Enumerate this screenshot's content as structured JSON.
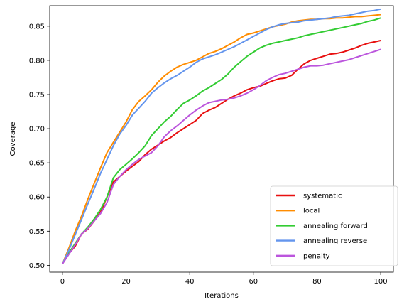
{
  "chart_data": {
    "type": "line",
    "title": "",
    "xlabel": "Iterations",
    "ylabel": "Coverage",
    "xlim": [
      -4,
      104
    ],
    "ylim": [
      0.49,
      0.88
    ],
    "xticks": [
      0,
      20,
      40,
      60,
      80,
      100
    ],
    "xtick_labels": [
      "0",
      "20",
      "40",
      "60",
      "80",
      "100"
    ],
    "yticks": [
      0.5,
      0.55,
      0.6,
      0.65,
      0.7,
      0.75,
      0.8,
      0.85
    ],
    "ytick_labels": [
      "0.50",
      "0.55",
      "0.60",
      "0.65",
      "0.70",
      "0.75",
      "0.80",
      "0.85"
    ],
    "grid": false,
    "legend_position": "lower right",
    "series": [
      {
        "name": "systematic",
        "color": "#e81010",
        "points": [
          [
            0,
            0.502
          ],
          [
            2,
            0.517
          ],
          [
            4,
            0.528
          ],
          [
            6,
            0.546
          ],
          [
            8,
            0.553
          ],
          [
            10,
            0.565
          ],
          [
            12,
            0.578
          ],
          [
            14,
            0.6
          ],
          [
            16,
            0.622
          ],
          [
            18,
            0.63
          ],
          [
            20,
            0.638
          ],
          [
            22,
            0.645
          ],
          [
            24,
            0.652
          ],
          [
            26,
            0.662
          ],
          [
            28,
            0.67
          ],
          [
            30,
            0.676
          ],
          [
            32,
            0.682
          ],
          [
            34,
            0.687
          ],
          [
            36,
            0.694
          ],
          [
            38,
            0.7
          ],
          [
            40,
            0.706
          ],
          [
            42,
            0.712
          ],
          [
            44,
            0.722
          ],
          [
            46,
            0.727
          ],
          [
            48,
            0.731
          ],
          [
            50,
            0.737
          ],
          [
            52,
            0.743
          ],
          [
            54,
            0.748
          ],
          [
            56,
            0.752
          ],
          [
            58,
            0.757
          ],
          [
            60,
            0.76
          ],
          [
            62,
            0.762
          ],
          [
            64,
            0.766
          ],
          [
            66,
            0.77
          ],
          [
            68,
            0.773
          ],
          [
            70,
            0.774
          ],
          [
            72,
            0.778
          ],
          [
            74,
            0.787
          ],
          [
            76,
            0.795
          ],
          [
            78,
            0.8
          ],
          [
            80,
            0.803
          ],
          [
            82,
            0.806
          ],
          [
            84,
            0.809
          ],
          [
            86,
            0.81
          ],
          [
            88,
            0.812
          ],
          [
            90,
            0.815
          ],
          [
            92,
            0.818
          ],
          [
            94,
            0.822
          ],
          [
            96,
            0.825
          ],
          [
            98,
            0.827
          ],
          [
            100,
            0.829
          ]
        ]
      },
      {
        "name": "local",
        "color": "#ff8c00",
        "points": [
          [
            0,
            0.502
          ],
          [
            2,
            0.525
          ],
          [
            4,
            0.55
          ],
          [
            6,
            0.572
          ],
          [
            8,
            0.597
          ],
          [
            10,
            0.62
          ],
          [
            12,
            0.643
          ],
          [
            14,
            0.665
          ],
          [
            16,
            0.68
          ],
          [
            18,
            0.695
          ],
          [
            20,
            0.71
          ],
          [
            22,
            0.728
          ],
          [
            24,
            0.74
          ],
          [
            26,
            0.748
          ],
          [
            28,
            0.757
          ],
          [
            30,
            0.768
          ],
          [
            32,
            0.777
          ],
          [
            34,
            0.784
          ],
          [
            36,
            0.79
          ],
          [
            38,
            0.794
          ],
          [
            40,
            0.797
          ],
          [
            42,
            0.8
          ],
          [
            44,
            0.805
          ],
          [
            46,
            0.81
          ],
          [
            48,
            0.813
          ],
          [
            50,
            0.817
          ],
          [
            52,
            0.822
          ],
          [
            54,
            0.827
          ],
          [
            56,
            0.833
          ],
          [
            58,
            0.838
          ],
          [
            60,
            0.84
          ],
          [
            62,
            0.843
          ],
          [
            64,
            0.846
          ],
          [
            66,
            0.849
          ],
          [
            68,
            0.851
          ],
          [
            70,
            0.853
          ],
          [
            72,
            0.856
          ],
          [
            74,
            0.858
          ],
          [
            76,
            0.859
          ],
          [
            78,
            0.86
          ],
          [
            80,
            0.86
          ],
          [
            82,
            0.861
          ],
          [
            84,
            0.861
          ],
          [
            86,
            0.862
          ],
          [
            88,
            0.862
          ],
          [
            90,
            0.863
          ],
          [
            92,
            0.864
          ],
          [
            94,
            0.864
          ],
          [
            96,
            0.865
          ],
          [
            98,
            0.866
          ],
          [
            100,
            0.867
          ]
        ]
      },
      {
        "name": "annealing forward",
        "color": "#33cc33",
        "points": [
          [
            0,
            0.502
          ],
          [
            2,
            0.518
          ],
          [
            4,
            0.532
          ],
          [
            6,
            0.546
          ],
          [
            8,
            0.556
          ],
          [
            10,
            0.568
          ],
          [
            12,
            0.582
          ],
          [
            14,
            0.6
          ],
          [
            16,
            0.628
          ],
          [
            18,
            0.64
          ],
          [
            20,
            0.648
          ],
          [
            22,
            0.656
          ],
          [
            24,
            0.665
          ],
          [
            26,
            0.675
          ],
          [
            28,
            0.69
          ],
          [
            30,
            0.7
          ],
          [
            32,
            0.71
          ],
          [
            34,
            0.718
          ],
          [
            36,
            0.728
          ],
          [
            38,
            0.737
          ],
          [
            40,
            0.742
          ],
          [
            42,
            0.748
          ],
          [
            44,
            0.755
          ],
          [
            46,
            0.76
          ],
          [
            48,
            0.766
          ],
          [
            50,
            0.772
          ],
          [
            52,
            0.78
          ],
          [
            54,
            0.79
          ],
          [
            56,
            0.798
          ],
          [
            58,
            0.806
          ],
          [
            60,
            0.812
          ],
          [
            62,
            0.818
          ],
          [
            64,
            0.822
          ],
          [
            66,
            0.825
          ],
          [
            68,
            0.827
          ],
          [
            70,
            0.829
          ],
          [
            72,
            0.831
          ],
          [
            74,
            0.833
          ],
          [
            76,
            0.836
          ],
          [
            78,
            0.838
          ],
          [
            80,
            0.84
          ],
          [
            82,
            0.842
          ],
          [
            84,
            0.844
          ],
          [
            86,
            0.846
          ],
          [
            88,
            0.848
          ],
          [
            90,
            0.85
          ],
          [
            92,
            0.852
          ],
          [
            94,
            0.854
          ],
          [
            96,
            0.857
          ],
          [
            98,
            0.859
          ],
          [
            100,
            0.862
          ]
        ]
      },
      {
        "name": "annealing reverse",
        "color": "#6495ed",
        "points": [
          [
            0,
            0.502
          ],
          [
            2,
            0.522
          ],
          [
            4,
            0.545
          ],
          [
            6,
            0.567
          ],
          [
            8,
            0.59
          ],
          [
            10,
            0.612
          ],
          [
            12,
            0.635
          ],
          [
            14,
            0.655
          ],
          [
            16,
            0.675
          ],
          [
            18,
            0.692
          ],
          [
            20,
            0.705
          ],
          [
            22,
            0.72
          ],
          [
            24,
            0.73
          ],
          [
            26,
            0.74
          ],
          [
            28,
            0.752
          ],
          [
            30,
            0.76
          ],
          [
            32,
            0.767
          ],
          [
            34,
            0.773
          ],
          [
            36,
            0.778
          ],
          [
            38,
            0.784
          ],
          [
            40,
            0.79
          ],
          [
            42,
            0.797
          ],
          [
            44,
            0.802
          ],
          [
            46,
            0.805
          ],
          [
            48,
            0.808
          ],
          [
            50,
            0.812
          ],
          [
            52,
            0.816
          ],
          [
            54,
            0.82
          ],
          [
            56,
            0.825
          ],
          [
            58,
            0.83
          ],
          [
            60,
            0.835
          ],
          [
            62,
            0.84
          ],
          [
            64,
            0.845
          ],
          [
            66,
            0.849
          ],
          [
            68,
            0.852
          ],
          [
            70,
            0.854
          ],
          [
            72,
            0.855
          ],
          [
            74,
            0.856
          ],
          [
            76,
            0.858
          ],
          [
            78,
            0.859
          ],
          [
            80,
            0.86
          ],
          [
            82,
            0.861
          ],
          [
            84,
            0.862
          ],
          [
            86,
            0.864
          ],
          [
            88,
            0.865
          ],
          [
            90,
            0.866
          ],
          [
            92,
            0.868
          ],
          [
            94,
            0.87
          ],
          [
            96,
            0.872
          ],
          [
            98,
            0.873
          ],
          [
            100,
            0.875
          ]
        ]
      },
      {
        "name": "penalty",
        "color": "#bb55dd",
        "points": [
          [
            0,
            0.502
          ],
          [
            2,
            0.516
          ],
          [
            4,
            0.53
          ],
          [
            6,
            0.546
          ],
          [
            8,
            0.554
          ],
          [
            10,
            0.565
          ],
          [
            12,
            0.576
          ],
          [
            14,
            0.592
          ],
          [
            16,
            0.618
          ],
          [
            18,
            0.63
          ],
          [
            20,
            0.64
          ],
          [
            22,
            0.648
          ],
          [
            24,
            0.655
          ],
          [
            26,
            0.66
          ],
          [
            28,
            0.665
          ],
          [
            30,
            0.675
          ],
          [
            32,
            0.688
          ],
          [
            34,
            0.697
          ],
          [
            36,
            0.704
          ],
          [
            38,
            0.712
          ],
          [
            40,
            0.72
          ],
          [
            42,
            0.727
          ],
          [
            44,
            0.733
          ],
          [
            46,
            0.738
          ],
          [
            48,
            0.74
          ],
          [
            50,
            0.742
          ],
          [
            52,
            0.743
          ],
          [
            54,
            0.745
          ],
          [
            56,
            0.748
          ],
          [
            58,
            0.752
          ],
          [
            60,
            0.757
          ],
          [
            62,
            0.763
          ],
          [
            64,
            0.77
          ],
          [
            66,
            0.775
          ],
          [
            68,
            0.779
          ],
          [
            70,
            0.781
          ],
          [
            72,
            0.784
          ],
          [
            74,
            0.787
          ],
          [
            76,
            0.79
          ],
          [
            78,
            0.792
          ],
          [
            80,
            0.792
          ],
          [
            82,
            0.793
          ],
          [
            84,
            0.795
          ],
          [
            86,
            0.797
          ],
          [
            88,
            0.799
          ],
          [
            90,
            0.801
          ],
          [
            92,
            0.804
          ],
          [
            94,
            0.807
          ],
          [
            96,
            0.81
          ],
          [
            98,
            0.813
          ],
          [
            100,
            0.816
          ]
        ]
      }
    ]
  }
}
